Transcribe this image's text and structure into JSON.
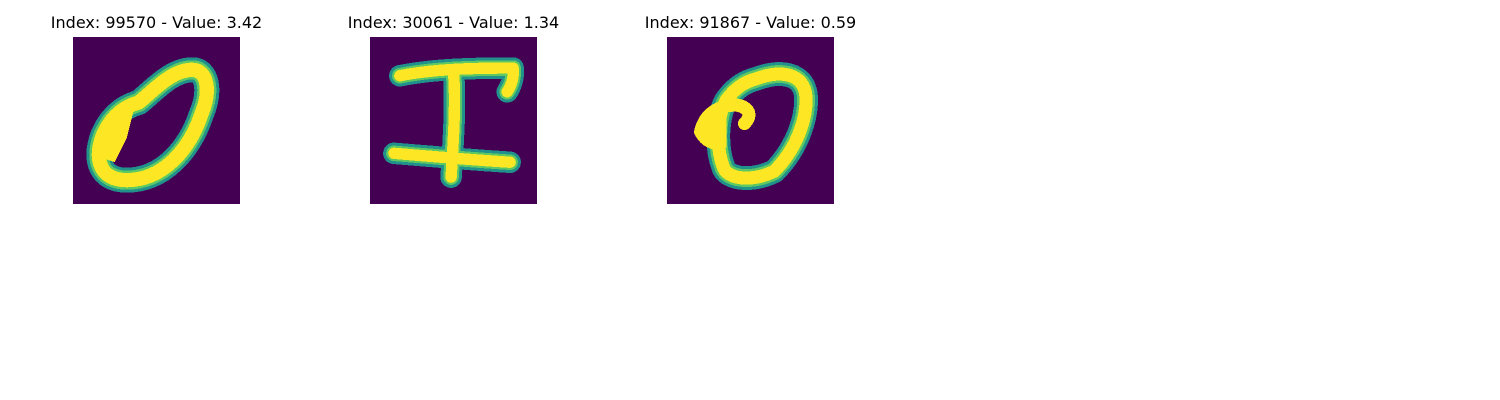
{
  "colors": {
    "background": "#440154",
    "stroke_edge": "#21918c",
    "stroke_mid": "#5ec962",
    "stroke_core": "#fde725"
  },
  "panels": [
    {
      "title": "Index: 99570 - Value: 3.42",
      "image": "handwritten digit zero"
    },
    {
      "title": "Index: 30061 - Value: 1.34",
      "image": "handwritten capital I"
    },
    {
      "title": "Index: 91867 - Value: 0.59",
      "image": "handwritten digit zero"
    }
  ]
}
